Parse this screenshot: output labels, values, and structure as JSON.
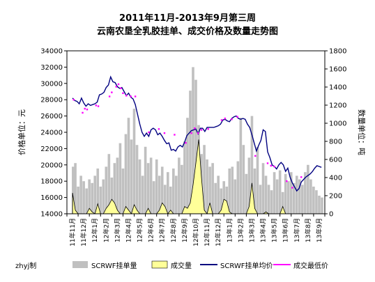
{
  "chart_data": {
    "type": "line",
    "title": "2011年11月-2013年9月第三周",
    "subtitle": "云南农垦全乳胶挂单、成交价格及数量走势图",
    "ylabel_left": "价格单位：元",
    "ylabel_right": "数量单位：吨",
    "ylim_left": [
      14000,
      34000
    ],
    "ylim_right": [
      0,
      1800
    ],
    "yticks_left": [
      14000,
      16000,
      18000,
      20000,
      22000,
      24000,
      26000,
      28000,
      30000,
      32000,
      34000
    ],
    "yticks_right": [
      0,
      200,
      400,
      600,
      800,
      1000,
      1200,
      1400,
      1600,
      1800
    ],
    "xticks": [
      "11年11月",
      "11年12月",
      "12年1月",
      "12年2月",
      "12年3月",
      "12年4月",
      "12年5月",
      "12年6月",
      "12年7月",
      "12年8月",
      "12年9月",
      "12年10月",
      "12年11月",
      "12年12月",
      "13年1月",
      "13年2月",
      "13年3月",
      "13年4月",
      "13年5月",
      "13年6月",
      "13年7月",
      "13年8月",
      "13年9月"
    ],
    "grid": false,
    "legend_position": "bottom",
    "credit": "zhyj制",
    "series": [
      {
        "name": "SCRWF挂单量",
        "kind": "bar",
        "axis": "right",
        "color": "#c0c0c0",
        "x": [
          0.05,
          0.25,
          0.5,
          0.75,
          1.0,
          1.25,
          1.5,
          1.75,
          2.0,
          2.25,
          2.5,
          2.75,
          3.0,
          3.25,
          3.5,
          3.75,
          4.0,
          4.25,
          4.5,
          4.75,
          5.0,
          5.25,
          5.5,
          5.75,
          6.0,
          6.25,
          6.5,
          6.75,
          7.0,
          7.25,
          7.5,
          7.75,
          8.0,
          8.25,
          8.5,
          8.75,
          9.0,
          9.25,
          9.5,
          9.75,
          10.0,
          10.25,
          10.5,
          10.75,
          11.0,
          11.25,
          11.5,
          11.75,
          12.0,
          12.25,
          12.5,
          12.75,
          13.0,
          13.25,
          13.5,
          13.75,
          14.0,
          14.25,
          14.5,
          14.75,
          15.0,
          15.25,
          15.5,
          15.75,
          16.0,
          16.25,
          16.5,
          16.75,
          17.0,
          17.25,
          17.5,
          17.75,
          18.0,
          18.25,
          18.5,
          18.75,
          19.0,
          19.25,
          19.5,
          19.75,
          20.0,
          20.25,
          20.5,
          20.75,
          21.0,
          21.25,
          21.5,
          21.75,
          22.0,
          22.25
        ],
        "values": [
          520,
          560,
          300,
          420,
          360,
          280,
          380,
          340,
          420,
          500,
          300,
          380,
          520,
          660,
          400,
          560,
          620,
          780,
          500,
          880,
          1060,
          820,
          1160,
          760,
          600,
          420,
          740,
          560,
          620,
          360,
          600,
          420,
          520,
          320,
          460,
          300,
          500,
          420,
          620,
          540,
          800,
          1060,
          1360,
          1620,
          1480,
          980,
          660,
          760,
          600,
          520,
          560,
          340,
          420,
          280,
          360,
          300,
          500,
          520,
          380,
          580,
          1060,
          760,
          440,
          620,
          1080,
          500,
          740,
          320,
          560,
          420,
          320,
          260,
          460,
          380,
          480,
          240,
          440,
          360,
          460,
          340,
          420,
          380,
          320,
          460,
          540,
          380,
          300,
          260,
          200,
          180
        ]
      },
      {
        "name": "成交量",
        "kind": "area",
        "axis": "right",
        "color": "#ffff99",
        "edge_color": "#000000",
        "x": [
          0.0,
          0.25,
          0.5,
          0.75,
          1.0,
          1.25,
          1.5,
          1.75,
          2.0,
          2.25,
          2.5,
          2.75,
          3.0,
          3.25,
          3.5,
          3.75,
          4.0,
          4.25,
          4.5,
          4.75,
          5.0,
          5.25,
          5.5,
          5.75,
          6.0,
          6.25,
          6.5,
          6.75,
          7.0,
          7.25,
          7.5,
          7.75,
          8.0,
          8.25,
          8.5,
          8.75,
          9.0,
          9.25,
          9.5,
          9.75,
          10.0,
          10.25,
          10.5,
          10.75,
          11.0,
          11.25,
          11.5,
          11.75,
          12.0,
          12.25,
          12.5,
          12.75,
          13.0,
          13.25,
          13.5,
          13.75,
          14.0,
          14.25,
          14.5,
          14.75,
          15.0,
          15.25,
          15.5,
          15.75,
          16.0,
          16.25,
          16.5,
          16.75,
          17.0,
          17.25,
          17.5,
          17.75,
          18.0,
          18.25,
          18.5,
          18.75,
          19.0,
          19.25,
          19.5,
          19.75,
          20.0,
          20.25,
          20.5,
          20.75,
          21.0,
          21.25,
          21.5,
          21.75,
          22.0,
          22.25
        ],
        "values": [
          230,
          40,
          0,
          0,
          0,
          0,
          60,
          20,
          0,
          110,
          0,
          0,
          60,
          100,
          160,
          120,
          40,
          0,
          0,
          80,
          40,
          0,
          100,
          40,
          0,
          0,
          0,
          60,
          0,
          0,
          0,
          40,
          120,
          80,
          0,
          40,
          0,
          0,
          0,
          0,
          80,
          60,
          120,
          320,
          560,
          820,
          400,
          40,
          0,
          120,
          0,
          0,
          0,
          40,
          160,
          140,
          20,
          0,
          0,
          0,
          0,
          0,
          0,
          80,
          340,
          60,
          0,
          0,
          0,
          20,
          0,
          0,
          0,
          0,
          0,
          80,
          0,
          0,
          0,
          0,
          0,
          0,
          0,
          0,
          0,
          0,
          0,
          0,
          0,
          0
        ]
      },
      {
        "name": "SCRWF挂单均价",
        "kind": "line",
        "axis": "left",
        "color": "#000080",
        "x": [
          0.0,
          0.2,
          0.4,
          0.6,
          0.8,
          1.0,
          1.2,
          1.4,
          1.6,
          1.8,
          2.0,
          2.2,
          2.4,
          2.6,
          2.8,
          3.0,
          3.2,
          3.4,
          3.6,
          3.8,
          4.0,
          4.2,
          4.4,
          4.6,
          4.8,
          5.0,
          5.2,
          5.4,
          5.6,
          5.8,
          6.0,
          6.2,
          6.4,
          6.6,
          6.8,
          7.0,
          7.2,
          7.4,
          7.6,
          7.8,
          8.0,
          8.2,
          8.4,
          8.6,
          8.8,
          9.0,
          9.2,
          9.4,
          9.6,
          9.8,
          10.0,
          10.2,
          10.4,
          10.6,
          10.8,
          11.0,
          11.2,
          11.4,
          11.6,
          11.8,
          12.0,
          12.2,
          12.4,
          12.6,
          12.8,
          13.0,
          13.2,
          13.4,
          13.6,
          13.8,
          14.0,
          14.2,
          14.4,
          14.6,
          14.8,
          15.0,
          15.2,
          15.4,
          15.6,
          15.8,
          16.0,
          16.2,
          16.4,
          16.6,
          16.8,
          17.0,
          17.2,
          17.4,
          17.6,
          17.8,
          18.0,
          18.2,
          18.4,
          18.6,
          18.8,
          19.0,
          19.2,
          19.4,
          19.6,
          19.8,
          20.0,
          20.2,
          20.4,
          20.6,
          20.8,
          21.0,
          21.2,
          21.4,
          21.6,
          21.8,
          22.0,
          22.2
        ],
        "values": [
          28200,
          27900,
          27800,
          27500,
          28200,
          27600,
          27200,
          27500,
          27300,
          27400,
          27500,
          27700,
          28600,
          28700,
          28900,
          29500,
          29800,
          30800,
          30200,
          30100,
          29600,
          29400,
          29500,
          29000,
          28500,
          28800,
          28300,
          28100,
          27400,
          26200,
          25000,
          24000,
          23500,
          23900,
          23500,
          24300,
          24500,
          24300,
          23700,
          23900,
          23500,
          23000,
          22600,
          22700,
          21800,
          21900,
          21700,
          22200,
          22400,
          22200,
          22800,
          23600,
          23900,
          24200,
          24300,
          24400,
          23800,
          24500,
          24500,
          24100,
          24600,
          24600,
          24600,
          24600,
          24700,
          24800,
          25000,
          25500,
          25600,
          25400,
          25300,
          25700,
          25900,
          26000,
          25700,
          25600,
          25700,
          25600,
          25000,
          24600,
          23700,
          22700,
          21700,
          22400,
          23000,
          24300,
          24100,
          21600,
          20900,
          20000,
          19800,
          19500,
          20000,
          20300,
          20000,
          19200,
          19600,
          18500,
          17800,
          17300,
          16800,
          17100,
          17900,
          18200,
          18500,
          18700,
          18900,
          19200,
          19600,
          19900,
          19800,
          19700
        ]
      },
      {
        "name": "成交最低价",
        "kind": "points",
        "axis": "left",
        "color": "#ff00ff",
        "x": [
          0.1,
          0.9,
          1.1,
          1.3,
          2.1,
          2.3,
          3.3,
          3.5,
          3.9,
          4.1,
          4.3,
          4.5,
          4.8,
          5.2,
          5.6,
          6.8,
          7.7,
          8.2,
          9.1,
          10.1,
          10.6,
          10.9,
          11.2,
          11.5,
          12.1,
          13.3,
          13.6,
          14.2,
          14.7,
          16.3,
          17.4,
          17.7,
          18.0,
          19.1,
          19.6,
          20.4
        ],
        "values": [
          28000,
          26400,
          26900,
          26800,
          27300,
          27200,
          28400,
          28900,
          29600,
          29900,
          29400,
          28800,
          28500,
          28400,
          28400,
          24000,
          24400,
          23900,
          23700,
          22700,
          23900,
          24500,
          23900,
          24300,
          24400,
          25500,
          25700,
          25600,
          25900,
          21100,
          20200,
          19900,
          19800,
          18000,
          17200,
          18500
        ]
      }
    ]
  }
}
